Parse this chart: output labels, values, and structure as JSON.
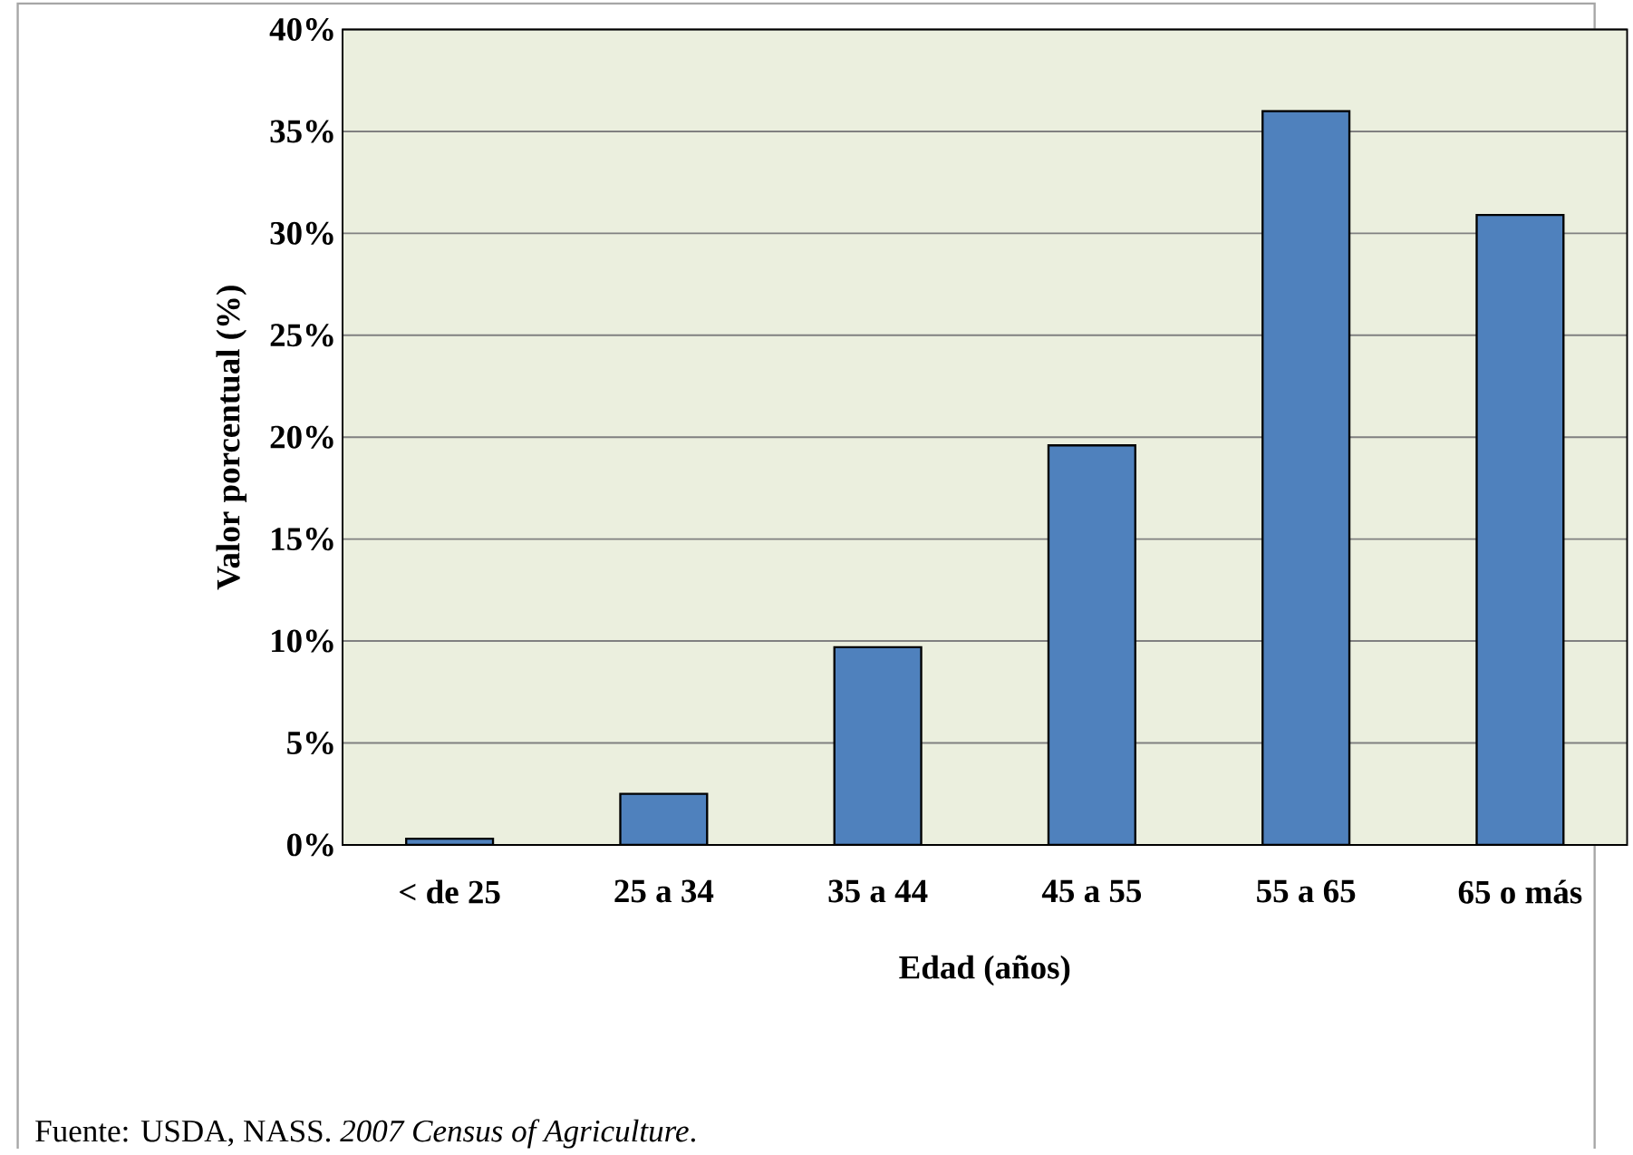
{
  "chart_data": {
    "type": "bar",
    "xlabel": "Edad (años)",
    "ylabel": "Valor porcentual (%)",
    "categories": [
      "< de 25",
      "25 a 34",
      "35 a 44",
      "45 a 55",
      "55 a 65",
      "65 o más"
    ],
    "values": [
      0.3,
      2.5,
      9.7,
      19.6,
      36.0,
      30.9
    ],
    "color": "#4f81bd",
    "ylim": [
      0,
      40
    ],
    "yticks": [
      {
        "value": 0,
        "label": "0%"
      },
      {
        "value": 5,
        "label": "5%"
      },
      {
        "value": 10,
        "label": "10%"
      },
      {
        "value": 15,
        "label": "15%"
      },
      {
        "value": 20,
        "label": "20%"
      },
      {
        "value": 25,
        "label": "25%"
      },
      {
        "value": 30,
        "label": "30%"
      },
      {
        "value": 35,
        "label": "35%"
      },
      {
        "value": 40,
        "label": "40%"
      }
    ],
    "grid": "y",
    "annotations": [
      "Fuente: USDA, NASS. *2007 Census of Agriculture*."
    ]
  }
}
